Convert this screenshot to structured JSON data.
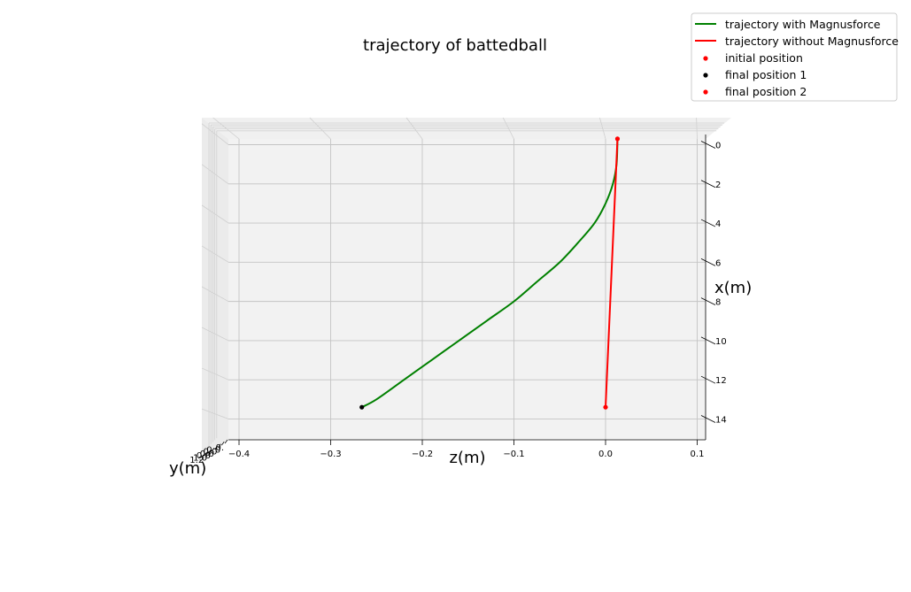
{
  "chart_data": {
    "type": "line",
    "projection": "3d",
    "title": "trajectory of battedball",
    "xlabel": "x(m)",
    "ylabel": "y(m)",
    "zlabel": "z(m)",
    "z_axis": {
      "range": [
        -0.41,
        0.11
      ],
      "ticks": [
        "−0.4",
        "−0.3",
        "−0.2",
        "−0.1",
        "0.0",
        "0.1"
      ],
      "tick_values": [
        -0.4,
        -0.3,
        -0.2,
        -0.1,
        0.0,
        0.1
      ]
    },
    "x_axis": {
      "range": [
        -0.3,
        15.2
      ],
      "ticks": [
        "0",
        "2",
        "4",
        "6",
        "8",
        "10",
        "12",
        "14"
      ],
      "tick_values": [
        0,
        2,
        4,
        6,
        8,
        10,
        12,
        14
      ]
    },
    "y_axis_ticks": [
      "0.",
      "0.0",
      "0.0",
      "0.6",
      "0.8",
      "1.0",
      "1.2"
    ],
    "grid": true,
    "legend_position": "top-right",
    "series": [
      {
        "name": "trajectory with Magnusforce",
        "kind": "line",
        "color": "#008000",
        "z": [
          0.013,
          0.012,
          0.008,
          0.0,
          -0.012,
          -0.03,
          -0.05,
          -0.075,
          -0.1,
          -0.13,
          -0.16,
          -0.19,
          -0.22,
          -0.25,
          -0.266
        ],
        "x": [
          -0.3,
          1.0,
          2.0,
          3.0,
          4.0,
          5.0,
          6.0,
          7.0,
          8.0,
          9.0,
          10.0,
          11.0,
          12.0,
          13.0,
          13.4
        ]
      },
      {
        "name": "trajectory without Magnusforce",
        "kind": "line",
        "color": "#ff0000",
        "z": [
          0.013,
          0.0
        ],
        "x": [
          -0.3,
          13.4
        ]
      },
      {
        "name": "initial position",
        "kind": "scatter",
        "color": "#ff0000",
        "z": [
          0.013
        ],
        "x": [
          -0.3
        ]
      },
      {
        "name": "final position 1",
        "kind": "scatter",
        "color": "#000000",
        "z": [
          -0.266
        ],
        "x": [
          13.4
        ]
      },
      {
        "name": "final position 2",
        "kind": "scatter",
        "color": "#ff0000",
        "z": [
          0.0
        ],
        "x": [
          13.4
        ]
      }
    ]
  }
}
